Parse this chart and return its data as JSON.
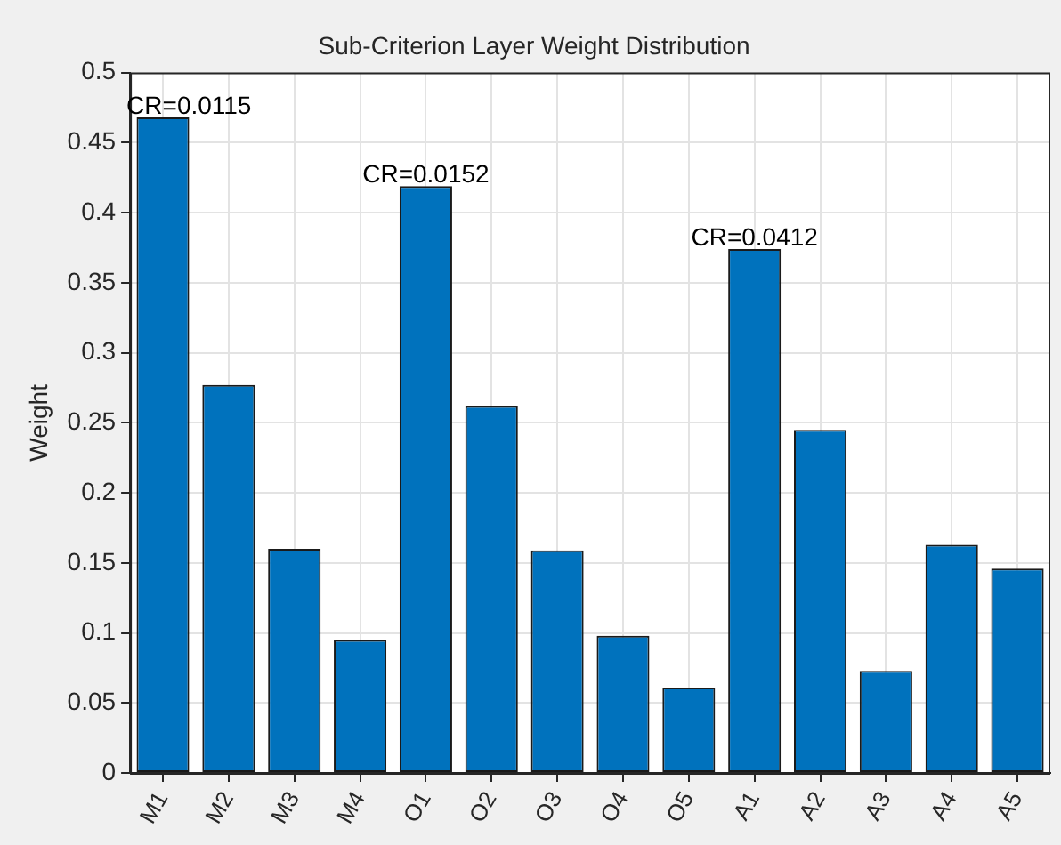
{
  "chart_data": {
    "type": "bar",
    "title": "Sub-Criterion Layer Weight Distribution",
    "ylabel": "Weight",
    "categories": [
      "M1",
      "M2",
      "M3",
      "M4",
      "O1",
      "O2",
      "O3",
      "O4",
      "O5",
      "A1",
      "A2",
      "A3",
      "A4",
      "A5"
    ],
    "values": [
      0.468,
      0.277,
      0.16,
      0.095,
      0.419,
      0.262,
      0.159,
      0.098,
      0.061,
      0.374,
      0.245,
      0.073,
      0.163,
      0.146
    ],
    "color": "#0072bd",
    "ylim": [
      0,
      0.5
    ],
    "yticks": [
      0,
      0.05,
      0.1,
      0.15,
      0.2,
      0.25,
      0.3,
      0.35,
      0.4,
      0.45,
      0.5
    ],
    "grid": true,
    "legend": false,
    "annotations": [
      {
        "text": "CR=0.0115",
        "x": "M1",
        "y": 0.468
      },
      {
        "text": "CR=0.0152",
        "x": "O1",
        "y": 0.419
      },
      {
        "text": "CR=0.0412",
        "x": "A1",
        "y": 0.374
      }
    ]
  }
}
